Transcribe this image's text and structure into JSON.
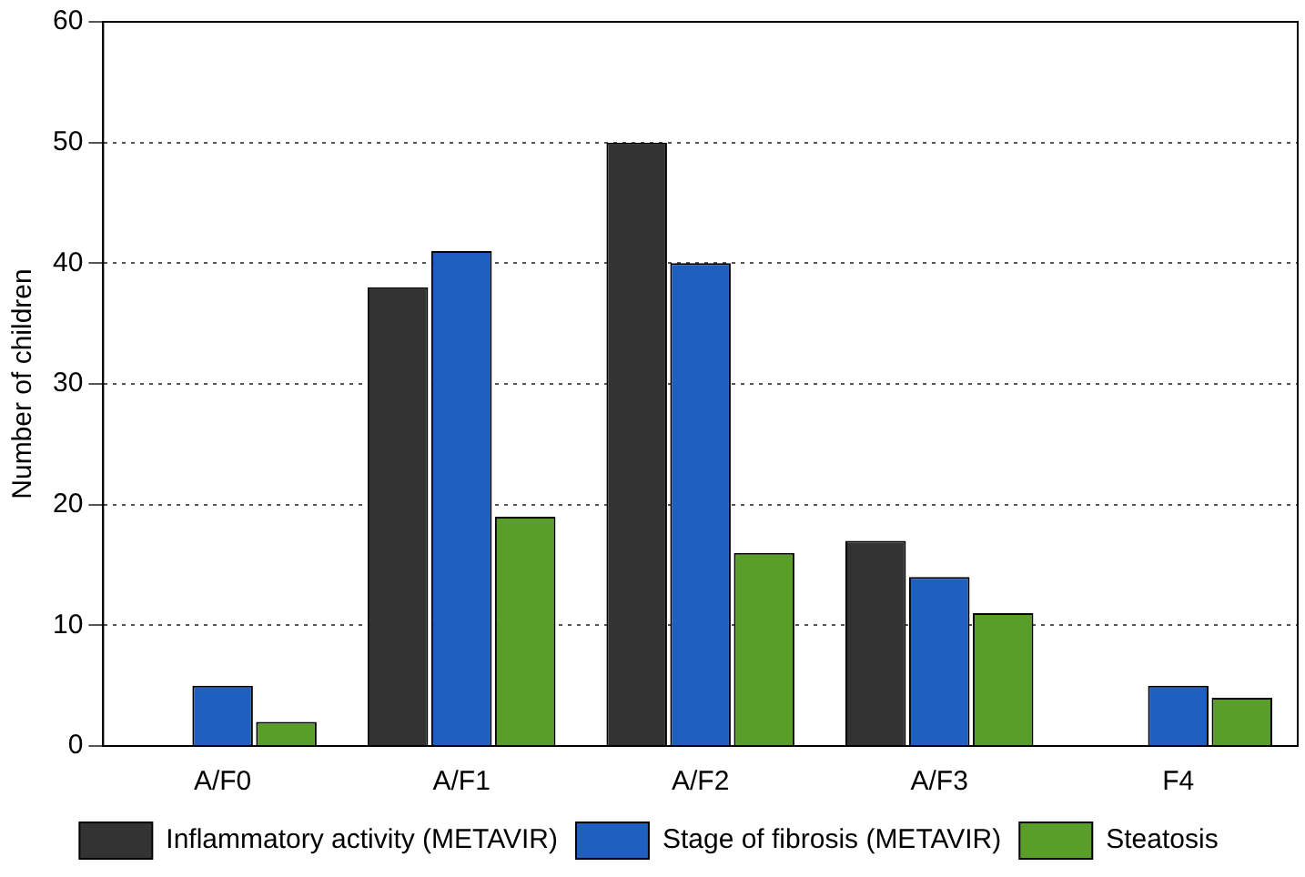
{
  "chart_data": {
    "type": "bar",
    "ylabel": "Number of children",
    "categories": [
      "A/F0",
      "A/F1",
      "A/F2",
      "A/F3",
      "F4"
    ],
    "series": [
      {
        "name": "Inflammatory activity (METAVIR)",
        "color": "#333333",
        "values": [
          null,
          38,
          50,
          17,
          null
        ]
      },
      {
        "name": "Stage of fibrosis (METAVIR)",
        "color": "#1f5fbf",
        "values": [
          5,
          41,
          40,
          14,
          5
        ]
      },
      {
        "name": "Steatosis",
        "color": "#5a9e2a",
        "values": [
          2,
          19,
          16,
          11,
          4
        ]
      }
    ],
    "ylim": [
      0,
      60
    ],
    "yticks": [
      0,
      10,
      20,
      30,
      40,
      50,
      60
    ],
    "grid": "y",
    "legend": "bottom"
  }
}
